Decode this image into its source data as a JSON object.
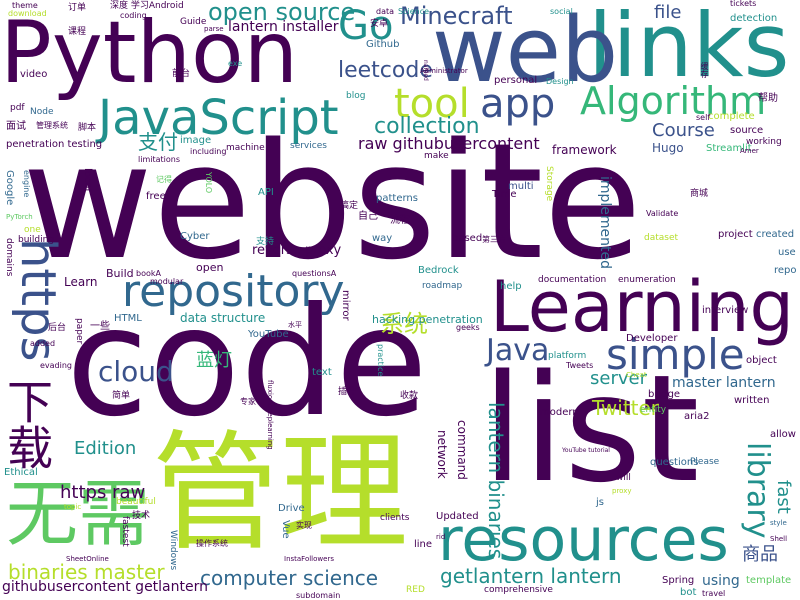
{
  "words": [
    "website",
    "code",
    "list",
    "管理",
    "Learning",
    "links",
    "web",
    "Python",
    "resources",
    "JavaScript",
    "repository",
    "无需",
    "下载",
    "simple",
    "Algorithm",
    "app",
    "tool",
    "https",
    "Go",
    "Java",
    "cloud",
    "library",
    "Minecraft",
    "open source",
    "collection",
    "leetcode",
    "lantern binaries",
    "getlantern lantern",
    "computer science",
    "binaries master",
    "Twitter",
    "系统",
    "raw githubusercontent",
    "Course",
    "server",
    "支付",
    "https raw",
    "Edition",
    "蓝灯",
    "商品",
    "file",
    "fast",
    "reverse proxy",
    "master lantern",
    "lantern installer",
    "githubusercontent getlantern",
    "hacking penetration",
    "data structure",
    "framework",
    "implemented",
    "network",
    "command",
    "Hugo",
    "Streamlit",
    "using",
    "detection",
    "YouTube",
    "penetration testing",
    "open",
    "Learn",
    "Build",
    "mirror",
    "Vue",
    "Storage",
    "interview",
    "documentation",
    "enumeration",
    "Bedrock",
    "roadmap",
    "help",
    "Developer",
    "object",
    "bridge",
    "written",
    "aria2",
    "allow",
    "questions",
    "Please",
    "modern",
    "entity",
    "js",
    "will",
    "Updated",
    "line",
    "clients",
    "Spring",
    "bot",
    "travel",
    "template",
    "repo",
    "use",
    "created",
    "project",
    "Validate",
    "dataset",
    "based",
    "第三方",
    "multi",
    "Time",
    "patterns",
    "way",
    "自己",
    "流程",
    "搞定",
    "Cyber",
    "API",
    "free",
    "记得",
    "YOLO",
    "machine",
    "services",
    "make",
    "limitations",
    "including",
    "image",
    "personal",
    "Design",
    "blog",
    "data",
    "Science",
    "social",
    "tickets",
    "theme",
    "download",
    "订单",
    "coding",
    "深度 学习Android",
    "Guide",
    "parse",
    "安卓",
    "Github",
    "exe",
    "前台",
    "video",
    "Node",
    "pdf",
    "面试",
    "管理系统",
    "脚本",
    "帮助",
    "complete",
    "self",
    "source",
    "working",
    "Amer",
    "practice",
    "platform",
    "Tweets",
    "Cheat",
    "proxy",
    "收款",
    "插件",
    "专家",
    "简单",
    "水平",
    "一些",
    "后台",
    "added",
    "evading",
    "Ethical",
    "topic",
    "beautiful",
    "技术",
    "fastest",
    "Windows",
    "操作系统",
    "SheetOnline",
    "InstaFollowers",
    "subdomain",
    "RED",
    "comprehensive",
    "Drive",
    "实现",
    "rid",
    "HTML",
    "paper",
    "domains",
    "building",
    "one",
    "PyTorch",
    "engine",
    "Google",
    "local",
    "text",
    "bookA",
    "questionsA",
    "geeks",
    "modular",
    "fluxiondeeplearning",
    "支持",
    "Administrator",
    "named",
    "课程",
    "商城",
    "缓存",
    "YouTube tutorial",
    "Shell",
    "style"
  ]
}
